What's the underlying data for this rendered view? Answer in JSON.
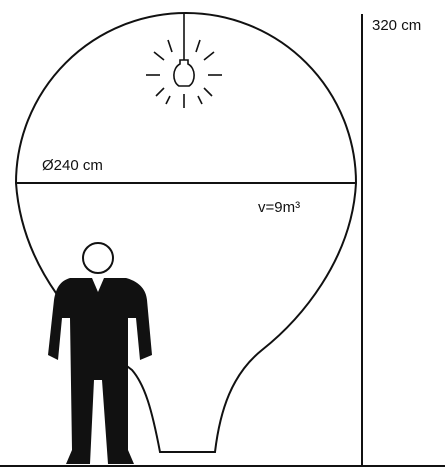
{
  "dimensions": {
    "height": "320 cm",
    "diameter": "Ø240 cm",
    "volume": "v=9m³"
  }
}
